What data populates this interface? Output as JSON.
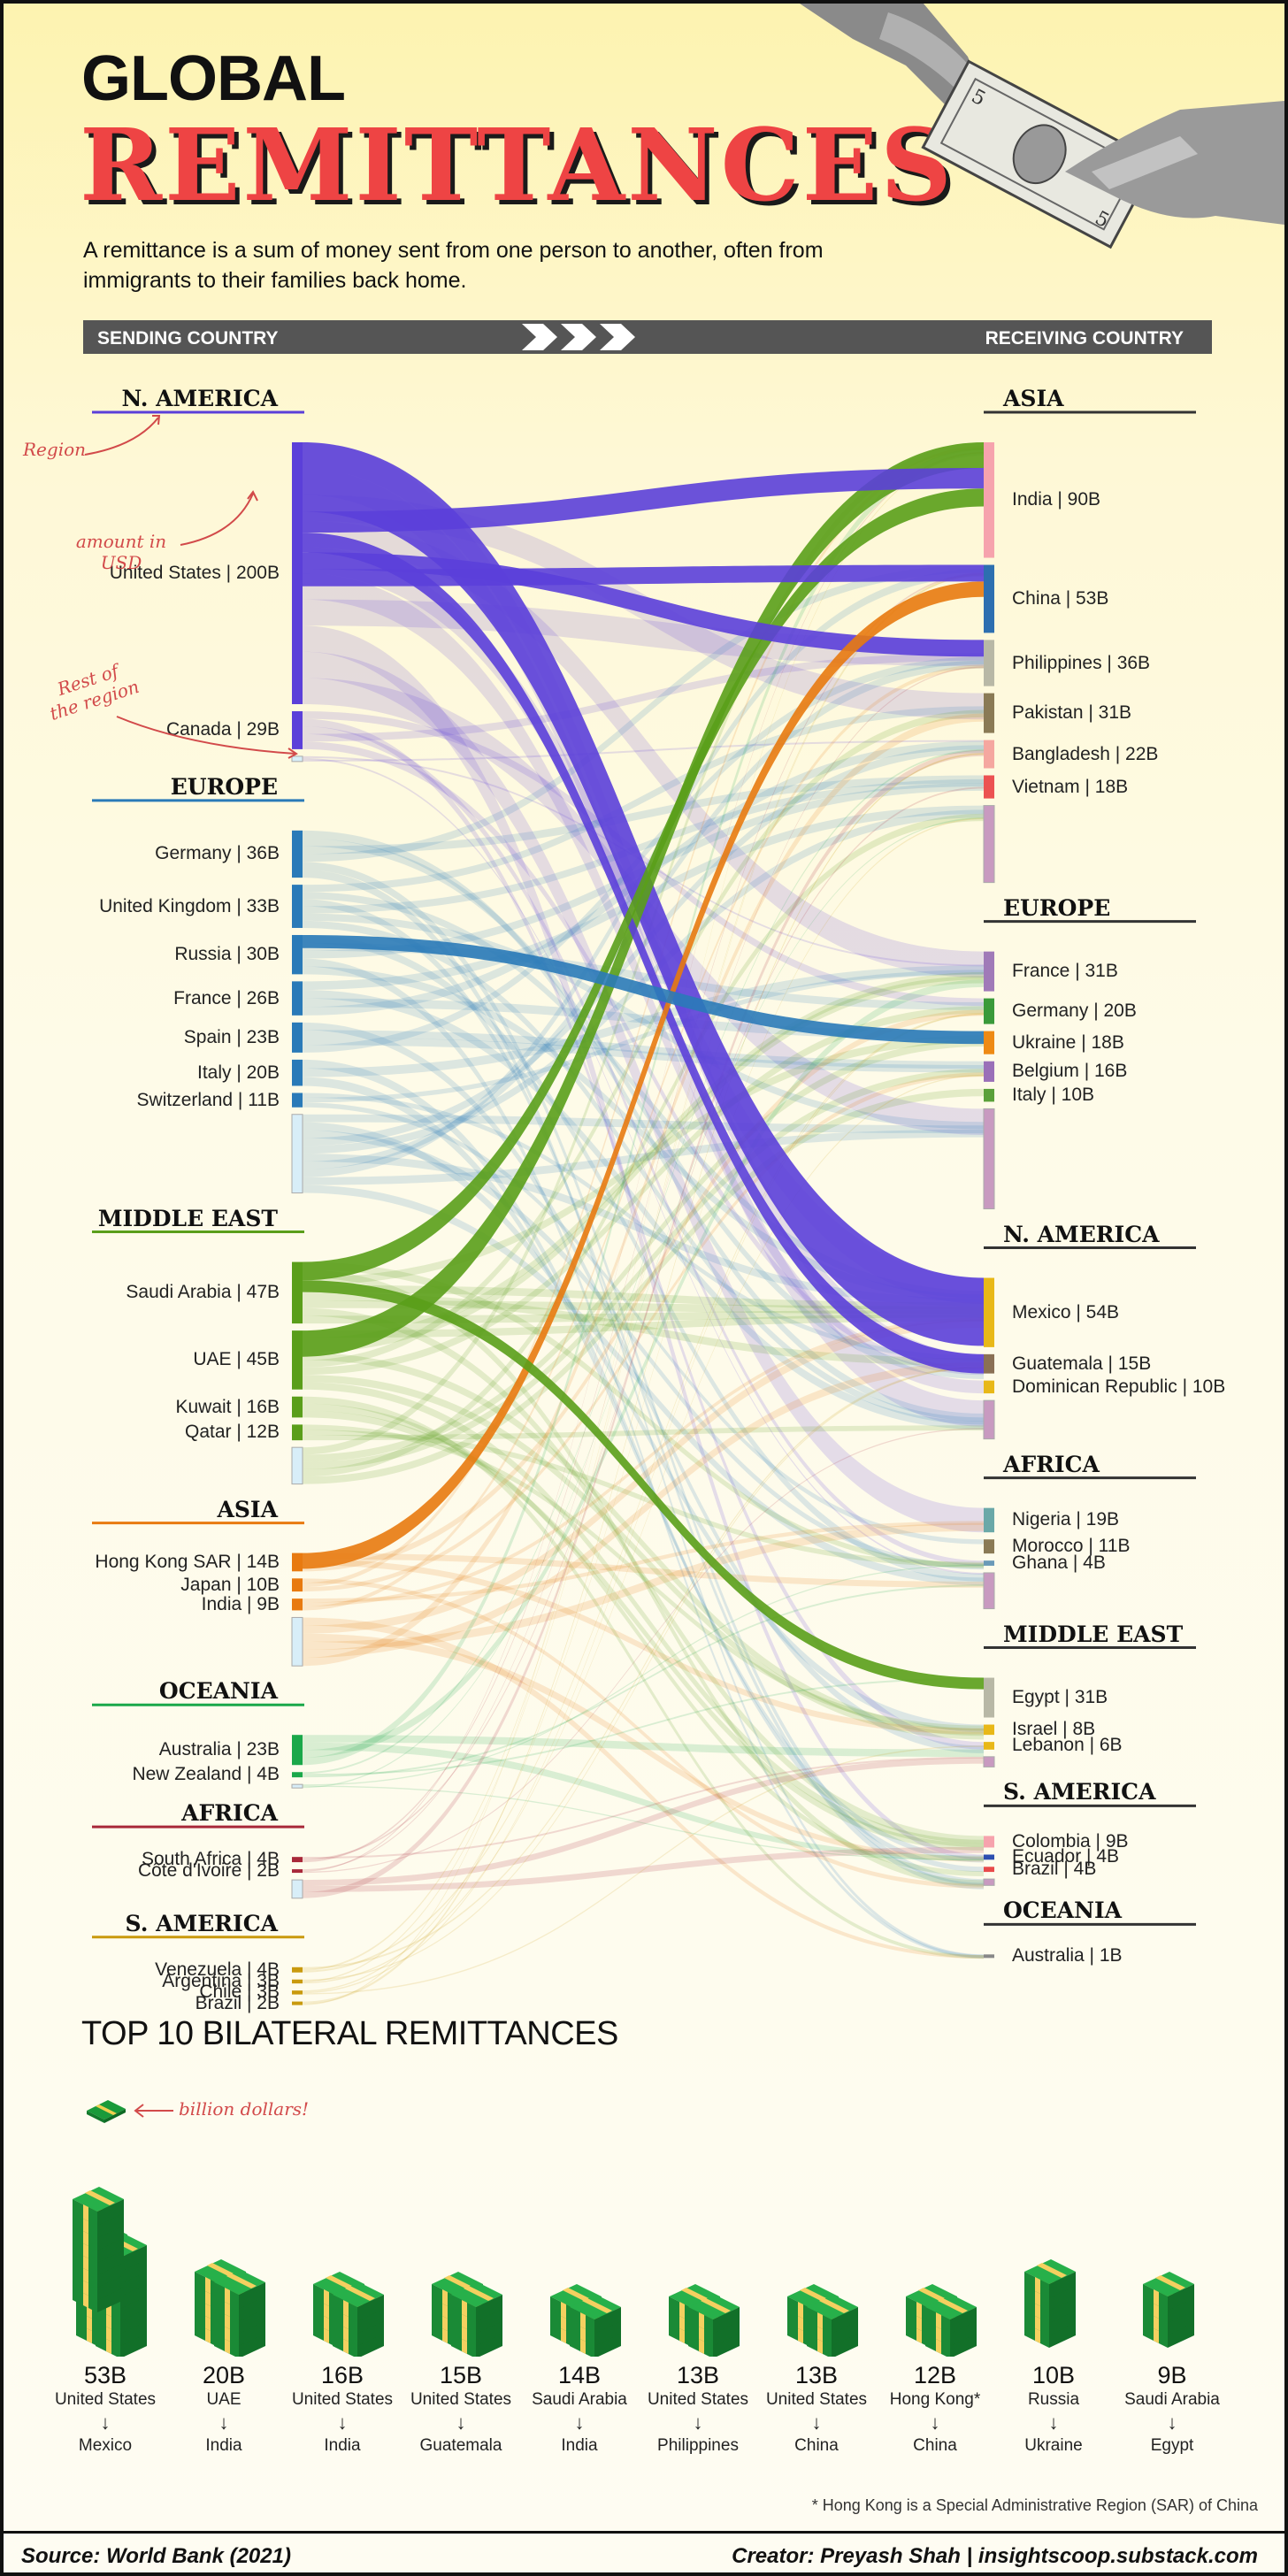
{
  "header": {
    "title_line1": "GLOBAL",
    "title_line2": "REMITTANCES",
    "subtitle": "A remittance is a sum of money sent from one person to another, often from immigrants to their families back home."
  },
  "banner": {
    "left": "SENDING COUNTRY",
    "right": "RECEIVING COUNTRY"
  },
  "annotations": {
    "region": "Region",
    "amount": "amount in USD",
    "rest": "Rest of the region"
  },
  "chart_data": {
    "type": "sankey",
    "title": "Global Remittances",
    "units": "billion USD",
    "sending": [
      {
        "region": "N. AMERICA",
        "color": "#5b3fd9",
        "countries": [
          {
            "name": "United States",
            "label": "United States | 200B",
            "value": 200
          },
          {
            "name": "Canada",
            "label": "Canada | 29B",
            "value": 29
          },
          {
            "name": "Rest",
            "label": "",
            "value": 4
          }
        ]
      },
      {
        "region": "EUROPE",
        "color": "#2a7ab8",
        "countries": [
          {
            "name": "Germany",
            "label": "Germany | 36B",
            "value": 36
          },
          {
            "name": "United Kingdom",
            "label": "United Kingdom | 33B",
            "value": 33
          },
          {
            "name": "Russia",
            "label": "Russia | 30B",
            "value": 30
          },
          {
            "name": "France",
            "label": "France | 26B",
            "value": 26
          },
          {
            "name": "Spain",
            "label": "Spain | 23B",
            "value": 23
          },
          {
            "name": "Italy",
            "label": "Italy | 20B",
            "value": 20
          },
          {
            "name": "Switzerland",
            "label": "Switzerland | 11B",
            "value": 11
          },
          {
            "name": "Rest",
            "label": "",
            "value": 60
          }
        ]
      },
      {
        "region": "MIDDLE EAST",
        "color": "#5a9e1a",
        "countries": [
          {
            "name": "Saudi Arabia",
            "label": "Saudi Arabia | 47B",
            "value": 47
          },
          {
            "name": "UAE",
            "label": "UAE | 45B",
            "value": 45
          },
          {
            "name": "Kuwait",
            "label": "Kuwait | 16B",
            "value": 16
          },
          {
            "name": "Qatar",
            "label": "Qatar | 12B",
            "value": 12
          },
          {
            "name": "Rest",
            "label": "",
            "value": 28
          }
        ]
      },
      {
        "region": "ASIA",
        "color": "#e87a10",
        "countries": [
          {
            "name": "Hong Kong SAR",
            "label": "Hong Kong SAR | 14B",
            "value": 14
          },
          {
            "name": "Japan",
            "label": "Japan | 10B",
            "value": 10
          },
          {
            "name": "India",
            "label": "India | 9B",
            "value": 9
          },
          {
            "name": "Rest",
            "label": "",
            "value": 37
          }
        ]
      },
      {
        "region": "OCEANIA",
        "color": "#1aa84a",
        "countries": [
          {
            "name": "Australia",
            "label": "Australia | 23B",
            "value": 23
          },
          {
            "name": "New Zealand",
            "label": "New Zealand | 4B",
            "value": 4
          },
          {
            "name": "Rest",
            "label": "",
            "value": 1
          }
        ]
      },
      {
        "region": "AFRICA",
        "color": "#a8283a",
        "countries": [
          {
            "name": "South Africa",
            "label": "South Africa | 4B",
            "value": 4
          },
          {
            "name": "Côte d'Ivoire",
            "label": "Côte d'Ivoire | 2B",
            "value": 2
          },
          {
            "name": "Rest",
            "label": "",
            "value": 14
          }
        ]
      },
      {
        "region": "S. AMERICA",
        "color": "#c99a0e",
        "countries": [
          {
            "name": "Venezuela",
            "label": "Venezuela | 4B",
            "value": 4
          },
          {
            "name": "Argentina",
            "label": "Argentina | 3B",
            "value": 3
          },
          {
            "name": "Chile",
            "label": "Chile | 3B",
            "value": 3
          },
          {
            "name": "Brazil",
            "label": "Brazil | 2B",
            "value": 2
          }
        ]
      }
    ],
    "receiving": [
      {
        "region": "ASIA",
        "countries": [
          {
            "name": "India",
            "label": "India | 90B",
            "value": 90,
            "color": "#f6a3ad"
          },
          {
            "name": "China",
            "label": "China | 53B",
            "value": 53,
            "color": "#2d6fb0"
          },
          {
            "name": "Philippines",
            "label": "Philippines | 36B",
            "value": 36,
            "color": "#b8b8a6"
          },
          {
            "name": "Pakistan",
            "label": "Pakistan | 31B",
            "value": 31,
            "color": "#8a7a55"
          },
          {
            "name": "Bangladesh",
            "label": "Bangladesh | 22B",
            "value": 22,
            "color": "#f5a7a0"
          },
          {
            "name": "Vietnam",
            "label": "Vietnam | 18B",
            "value": 18,
            "color": "#ec5252"
          },
          {
            "name": "Rest",
            "label": "",
            "value": 60,
            "color": "#b77aa9"
          }
        ]
      },
      {
        "region": "EUROPE",
        "countries": [
          {
            "name": "France",
            "label": "France | 31B",
            "value": 31,
            "color": "#a07ab8"
          },
          {
            "name": "Germany",
            "label": "Germany | 20B",
            "value": 20,
            "color": "#3a9a3a"
          },
          {
            "name": "Ukraine",
            "label": "Ukraine | 18B",
            "value": 18,
            "color": "#ee8a14"
          },
          {
            "name": "Belgium",
            "label": "Belgium | 16B",
            "value": 16,
            "color": "#9a70b8"
          },
          {
            "name": "Italy",
            "label": "Italy | 10B",
            "value": 10,
            "color": "#5aa03a"
          },
          {
            "name": "Rest",
            "label": "",
            "value": 78,
            "color": "#b77aa9"
          }
        ]
      },
      {
        "region": "N. AMERICA",
        "countries": [
          {
            "name": "Mexico",
            "label": "Mexico | 54B",
            "value": 54,
            "color": "#e8b818"
          },
          {
            "name": "Guatemala",
            "label": "Guatemala | 15B",
            "value": 15,
            "color": "#8a7055"
          },
          {
            "name": "Dominican Republic",
            "label": "Dominican Republic | 10B",
            "value": 10,
            "color": "#e8b818"
          },
          {
            "name": "Rest",
            "label": "",
            "value": 30,
            "color": "#b77aa9"
          }
        ]
      },
      {
        "region": "AFRICA",
        "countries": [
          {
            "name": "Nigeria",
            "label": "Nigeria | 19B",
            "value": 19,
            "color": "#6aa8a8"
          },
          {
            "name": "Morocco",
            "label": "Morocco | 11B",
            "value": 11,
            "color": "#8a7a55"
          },
          {
            "name": "Ghana",
            "label": "Ghana | 4B",
            "value": 4,
            "color": "#6a9ab8"
          },
          {
            "name": "Rest",
            "label": "",
            "value": 28,
            "color": "#b77aa9"
          }
        ]
      },
      {
        "region": "MIDDLE EAST",
        "countries": [
          {
            "name": "Egypt",
            "label": "Egypt | 31B",
            "value": 31,
            "color": "#b8b8a6"
          },
          {
            "name": "Israel",
            "label": "Israel | 8B",
            "value": 8,
            "color": "#e8b818"
          },
          {
            "name": "Lebanon",
            "label": "Lebanon | 6B",
            "value": 6,
            "color": "#e8b818"
          },
          {
            "name": "Rest",
            "label": "",
            "value": 8,
            "color": "#b77aa9"
          }
        ]
      },
      {
        "region": "S. AMERICA",
        "countries": [
          {
            "name": "Colombia",
            "label": "Colombia | 9B",
            "value": 9,
            "color": "#f6a3ad"
          },
          {
            "name": "Ecuador",
            "label": "Ecuador | 4B",
            "value": 4,
            "color": "#2d4fb0"
          },
          {
            "name": "Brazil",
            "label": "Brazil | 4B",
            "value": 4,
            "color": "#e84a4a"
          },
          {
            "name": "Rest",
            "label": "",
            "value": 5,
            "color": "#b77aa9"
          }
        ]
      },
      {
        "region": "OCEANIA",
        "countries": [
          {
            "name": "Australia",
            "label": "Australia | 1B",
            "value": 1,
            "color": "#888"
          }
        ]
      }
    ],
    "highlighted_flows": [
      {
        "from": "United States",
        "to": "Mexico",
        "value": 53
      },
      {
        "from": "UAE",
        "to": "India",
        "value": 20
      },
      {
        "from": "United States",
        "to": "India",
        "value": 16
      },
      {
        "from": "United States",
        "to": "Guatemala",
        "value": 15
      },
      {
        "from": "Saudi Arabia",
        "to": "India",
        "value": 14
      },
      {
        "from": "United States",
        "to": "Philippines",
        "value": 13
      },
      {
        "from": "United States",
        "to": "China",
        "value": 13
      },
      {
        "from": "Hong Kong SAR",
        "to": "China",
        "value": 12
      },
      {
        "from": "Russia",
        "to": "Ukraine",
        "value": 10
      },
      {
        "from": "Saudi Arabia",
        "to": "Egypt",
        "value": 9
      }
    ],
    "top10": {
      "title": "TOP 10 BILATERAL REMITTANCES",
      "legend": "billion dollars!",
      "items": [
        {
          "amount": "53B",
          "value": 53,
          "from": "United States",
          "to": "Mexico"
        },
        {
          "amount": "20B",
          "value": 20,
          "from": "UAE",
          "to": "India"
        },
        {
          "amount": "16B",
          "value": 16,
          "from": "United States",
          "to": "India"
        },
        {
          "amount": "15B",
          "value": 15,
          "from": "United States",
          "to": "Guatemala"
        },
        {
          "amount": "14B",
          "value": 14,
          "from": "Saudi Arabia",
          "to": "India"
        },
        {
          "amount": "13B",
          "value": 13,
          "from": "United States",
          "to": "Philippines"
        },
        {
          "amount": "13B",
          "value": 13,
          "from": "United States",
          "to": "China"
        },
        {
          "amount": "12B",
          "value": 12,
          "from": "Hong Kong*",
          "to": "China"
        },
        {
          "amount": "10B",
          "value": 10,
          "from": "Russia",
          "to": "Ukraine"
        },
        {
          "amount": "9B",
          "value": 9,
          "from": "Saudi Arabia",
          "to": "Egypt"
        }
      ]
    }
  },
  "footnote": "* Hong Kong is a Special Administrative Region (SAR) of China",
  "footer": {
    "source": "Source: World Bank (2021)",
    "creator": "Creator: Preyash Shah | insightscoop.substack.com"
  }
}
